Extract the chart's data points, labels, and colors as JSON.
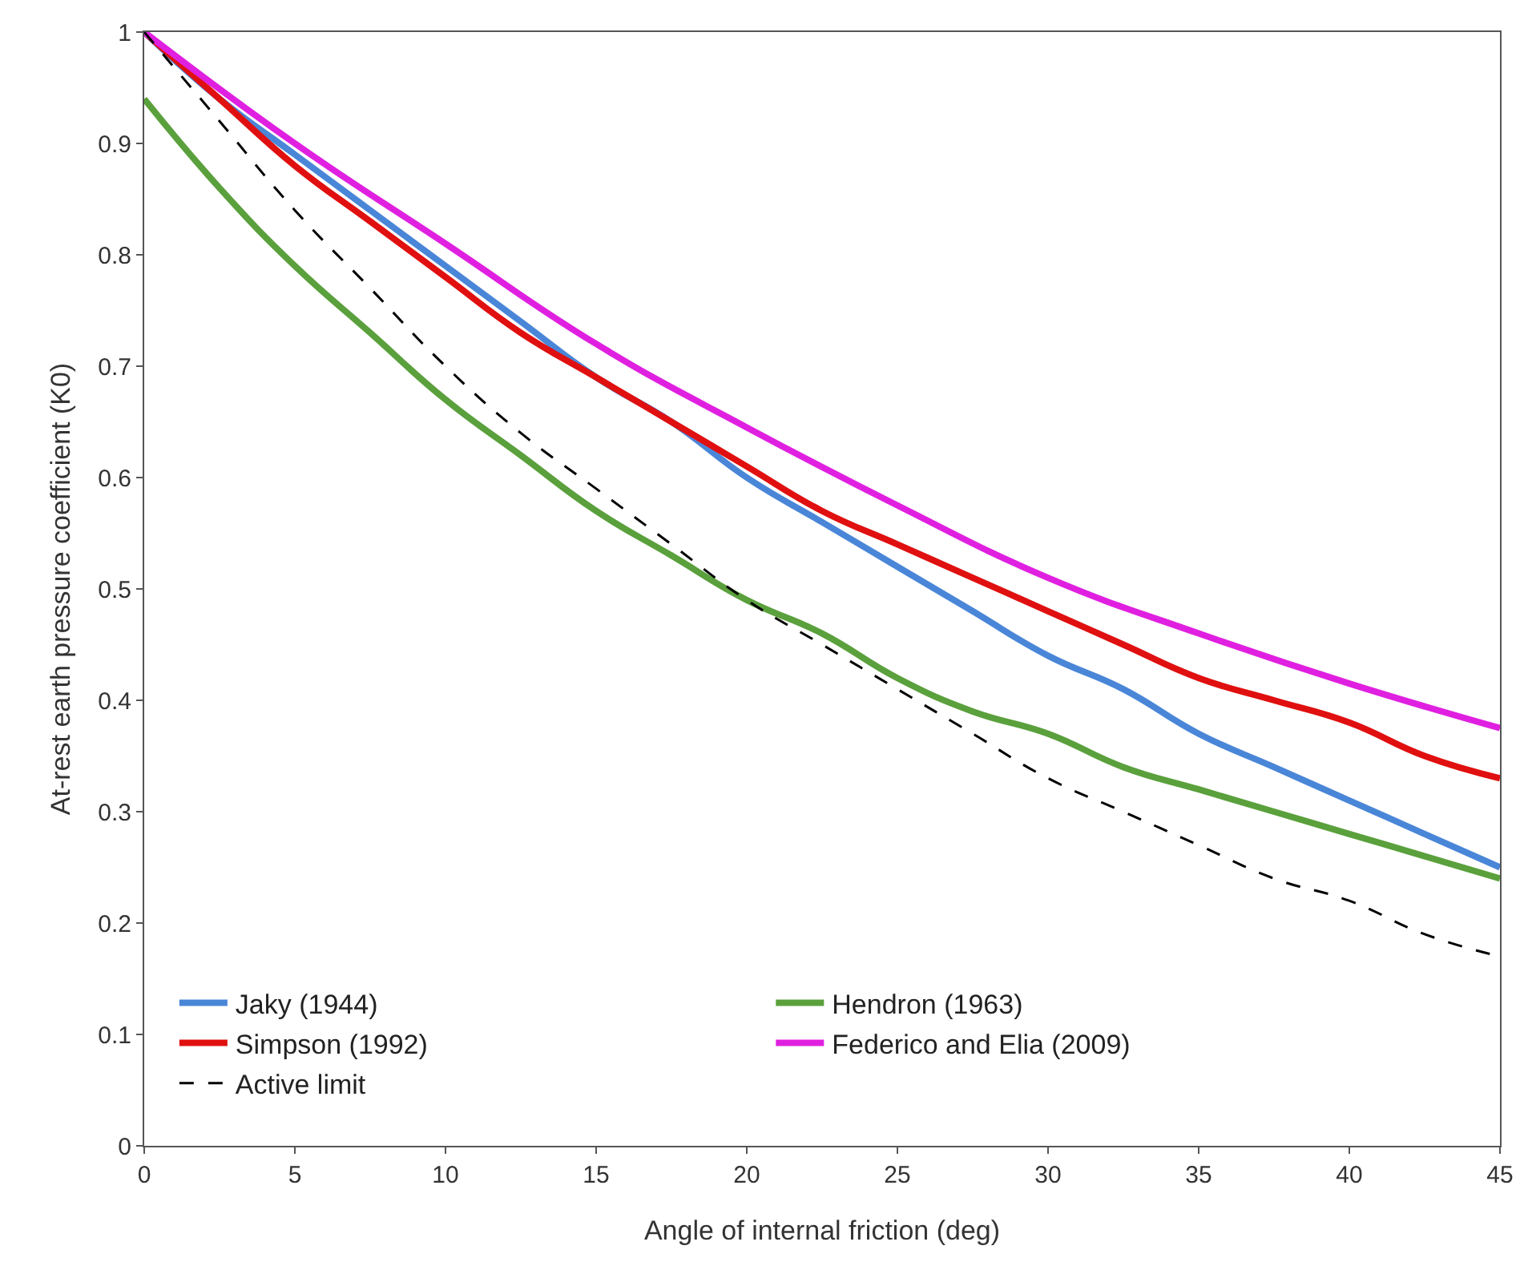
{
  "chart_data": {
    "type": "line",
    "xlabel": "Angle of internal friction (deg)",
    "ylabel": "At-rest earth pressure coefficient (K0)",
    "xlim": [
      0,
      45
    ],
    "xticks": [
      0,
      5,
      10,
      15,
      20,
      25,
      30,
      35,
      40,
      45
    ],
    "ylim": [
      0,
      1
    ],
    "yticks": [
      0,
      0.1,
      0.2,
      0.3,
      0.4,
      0.5,
      0.6,
      0.7,
      0.8,
      0.9,
      1
    ],
    "legend": "bottom left",
    "marker": "none",
    "series": [
      {
        "name": "Jaky (1944)",
        "color": "#4a86d8",
        "line_style": "solid",
        "x": [
          0,
          2.5,
          5,
          7.5,
          10,
          12.5,
          15,
          17.5,
          20,
          22.5,
          25,
          27.5,
          30,
          32.5,
          35,
          37.5,
          40,
          42.5,
          45
        ],
        "values": [
          1,
          0.94,
          0.89,
          0.84,
          0.79,
          0.74,
          0.69,
          0.65,
          0.6,
          0.56,
          0.52,
          0.48,
          0.44,
          0.41,
          0.37,
          0.34,
          0.31,
          0.28,
          0.25
        ]
      },
      {
        "name": "Hendron (1963)",
        "color": "#5aa03c",
        "line_style": "solid",
        "x": [
          0,
          2.5,
          5,
          7.5,
          10,
          12.5,
          15,
          17.5,
          20,
          22.5,
          25,
          27.5,
          30,
          32.5,
          35,
          37.5,
          40,
          42.5,
          45
        ],
        "values": [
          0.94,
          0.86,
          0.79,
          0.73,
          0.67,
          0.62,
          0.57,
          0.53,
          0.49,
          0.46,
          0.42,
          0.39,
          0.37,
          0.34,
          0.32,
          0.3,
          0.28,
          0.26,
          0.24
        ]
      },
      {
        "name": "Simpson (1992)",
        "color": "#e01010",
        "line_style": "solid",
        "x": [
          0,
          2.5,
          5,
          7.5,
          10,
          12.5,
          15,
          17.5,
          20,
          22.5,
          25,
          27.5,
          30,
          32.5,
          35,
          37.5,
          40,
          42.5,
          45
        ],
        "values": [
          1,
          0.94,
          0.88,
          0.83,
          0.78,
          0.73,
          0.69,
          0.65,
          0.61,
          0.57,
          0.54,
          0.51,
          0.48,
          0.45,
          0.42,
          0.4,
          0.38,
          0.35,
          0.33
        ]
      },
      {
        "name": "Federico and Elia (2009)",
        "color": "#e020e0",
        "line_style": "solid",
        "x": [
          0,
          5,
          10,
          15,
          20,
          25,
          30,
          35,
          40,
          45
        ],
        "values": [
          1,
          0.9,
          0.81,
          0.72,
          0.645,
          0.575,
          0.51,
          0.46,
          0.415,
          0.375
        ]
      },
      {
        "name": "Active limit",
        "color": "#000000",
        "line_style": "dashed",
        "x": [
          0,
          2.5,
          5,
          7.5,
          10,
          12.5,
          15,
          17.5,
          20,
          22.5,
          25,
          27.5,
          30,
          32.5,
          35,
          37.5,
          40,
          42.5,
          45
        ],
        "values": [
          1,
          0.92,
          0.84,
          0.77,
          0.7,
          0.64,
          0.59,
          0.54,
          0.49,
          0.45,
          0.41,
          0.37,
          0.33,
          0.3,
          0.27,
          0.24,
          0.22,
          0.19,
          0.17
        ]
      }
    ]
  }
}
